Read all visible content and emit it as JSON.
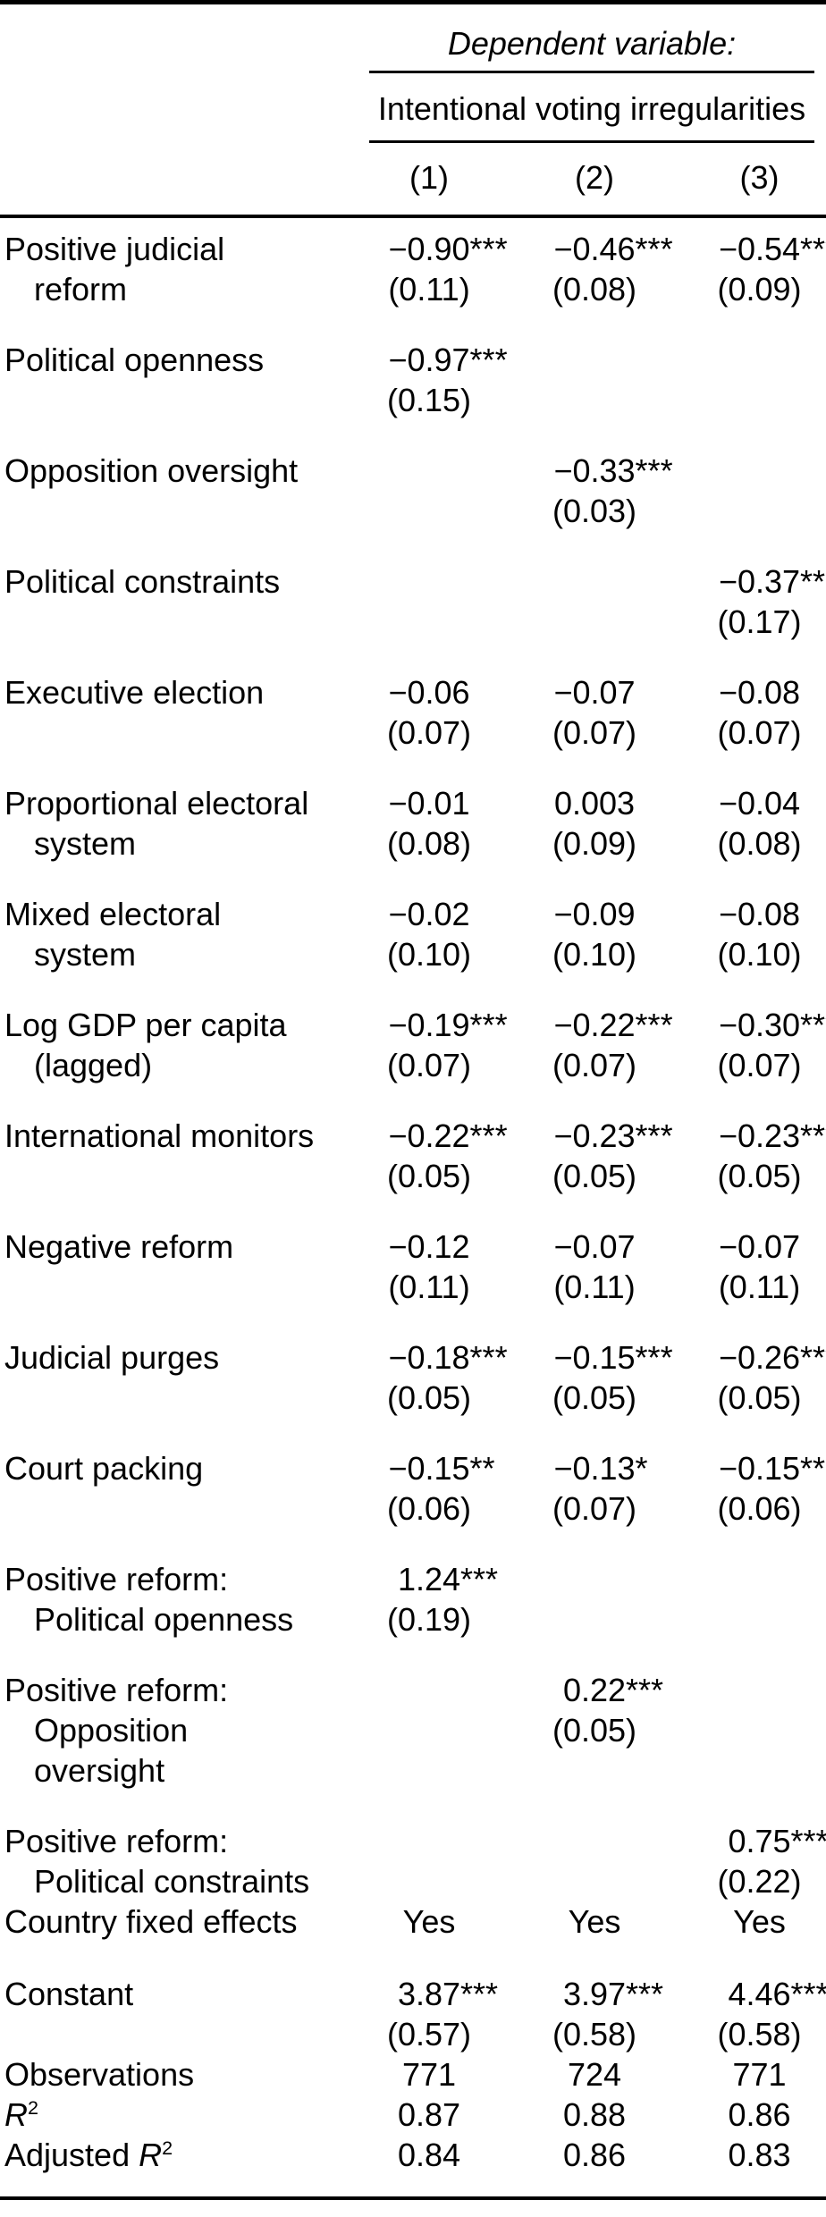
{
  "header": {
    "dependent_variable_label": "Dependent variable:",
    "dependent_variable": "Intentional voting irregularities",
    "column_numbers": [
      "(1)",
      "(2)",
      "(3)"
    ]
  },
  "rows": [
    {
      "label": [
        "Positive judicial",
        "reform"
      ],
      "coef": [
        [
          "−0.90",
          "***"
        ],
        [
          "−0.46",
          "***"
        ],
        [
          "−0.54",
          "***"
        ]
      ],
      "se": [
        "(0.11)",
        "(0.08)",
        "(0.09)"
      ]
    },
    {
      "label": [
        "Political openness",
        ""
      ],
      "coef": [
        [
          "−0.97",
          "***"
        ],
        [
          "",
          ""
        ],
        [
          "",
          ""
        ]
      ],
      "se": [
        "(0.15)",
        "",
        ""
      ]
    },
    {
      "label": [
        "Opposition oversight",
        ""
      ],
      "coef": [
        [
          "",
          ""
        ],
        [
          "−0.33",
          "***"
        ],
        [
          "",
          ""
        ]
      ],
      "se": [
        "",
        "(0.03)",
        ""
      ]
    },
    {
      "label": [
        "Political constraints",
        ""
      ],
      "coef": [
        [
          "",
          ""
        ],
        [
          "",
          ""
        ],
        [
          "−0.37",
          "**"
        ]
      ],
      "se": [
        "",
        "",
        "(0.17)"
      ]
    },
    {
      "label": [
        "Executive election",
        ""
      ],
      "coef": [
        [
          "−0.06",
          ""
        ],
        [
          "−0.07",
          ""
        ],
        [
          "−0.08",
          ""
        ]
      ],
      "se": [
        "(0.07)",
        "(0.07)",
        "(0.07)"
      ]
    },
    {
      "label": [
        "Proportional electoral",
        "system"
      ],
      "coef": [
        [
          "−0.01",
          ""
        ],
        [
          "0.003",
          ""
        ],
        [
          "−0.04",
          ""
        ]
      ],
      "se": [
        "(0.08)",
        "(0.09)",
        "(0.08)"
      ]
    },
    {
      "label": [
        "Mixed electoral",
        "system"
      ],
      "coef": [
        [
          "−0.02",
          ""
        ],
        [
          "−0.09",
          ""
        ],
        [
          "−0.08",
          ""
        ]
      ],
      "se": [
        "(0.10)",
        "(0.10)",
        "(0.10)"
      ]
    },
    {
      "label": [
        "Log GDP per capita",
        "(lagged)"
      ],
      "coef": [
        [
          "−0.19",
          "***"
        ],
        [
          "−0.22",
          "***"
        ],
        [
          "−0.30",
          "***"
        ]
      ],
      "se": [
        "(0.07)",
        "(0.07)",
        "(0.07)"
      ]
    },
    {
      "label": [
        "International monitors",
        ""
      ],
      "coef": [
        [
          "−0.22",
          "***"
        ],
        [
          "−0.23",
          "***"
        ],
        [
          "−0.23",
          "***"
        ]
      ],
      "se": [
        "(0.05)",
        "(0.05)",
        "(0.05)"
      ]
    },
    {
      "label": [
        "Negative reform",
        ""
      ],
      "coef": [
        [
          "−0.12",
          ""
        ],
        [
          "−0.07",
          ""
        ],
        [
          "−0.07",
          ""
        ]
      ],
      "se": [
        "(0.11)",
        "(0.11)",
        "(0.11)"
      ]
    },
    {
      "label": [
        "Judicial purges",
        ""
      ],
      "coef": [
        [
          "−0.18",
          "***"
        ],
        [
          "−0.15",
          "***"
        ],
        [
          "−0.26",
          "***"
        ]
      ],
      "se": [
        "(0.05)",
        "(0.05)",
        "(0.05)"
      ]
    },
    {
      "label": [
        "Court packing",
        ""
      ],
      "coef": [
        [
          "−0.15",
          "**"
        ],
        [
          "−0.13",
          "*"
        ],
        [
          "−0.15",
          "**"
        ]
      ],
      "se": [
        "(0.06)",
        "(0.07)",
        "(0.06)"
      ]
    },
    {
      "label": [
        "Positive reform:",
        "Political openness"
      ],
      "coef": [
        [
          "1.24",
          "***"
        ],
        [
          "",
          ""
        ],
        [
          "",
          ""
        ]
      ],
      "se": [
        "(0.19)",
        "",
        ""
      ]
    },
    {
      "label": [
        "Positive reform:",
        "Opposition",
        "oversight"
      ],
      "coef": [
        [
          "",
          ""
        ],
        [
          "0.22",
          "***"
        ],
        [
          "",
          ""
        ]
      ],
      "se": [
        "",
        "(0.05)",
        ""
      ]
    },
    {
      "label": [
        "Positive reform:",
        "Political constraints"
      ],
      "coef": [
        [
          "",
          ""
        ],
        [
          "",
          ""
        ],
        [
          "0.75",
          "***"
        ]
      ],
      "se": [
        "",
        "",
        "(0.22)"
      ]
    },
    {
      "label": [
        "Country fixed effects"
      ],
      "values": [
        "Yes",
        "Yes",
        "Yes"
      ]
    },
    {
      "label": [
        "Constant",
        ""
      ],
      "coef": [
        [
          "3.87",
          "***"
        ],
        [
          "3.97",
          "***"
        ],
        [
          "4.46",
          "***"
        ]
      ],
      "se": [
        "(0.57)",
        "(0.58)",
        "(0.58)"
      ]
    },
    {
      "label": [
        "Observations"
      ],
      "values": [
        "771",
        "724",
        "771"
      ]
    },
    {
      "label_pre": "",
      "label_italic": "R",
      "label_sup": "2",
      "values": [
        "0.87",
        "0.88",
        "0.86"
      ]
    },
    {
      "label_pre": "Adjusted ",
      "label_italic": "R",
      "label_sup": "2",
      "values": [
        "0.84",
        "0.86",
        "0.83"
      ]
    }
  ]
}
